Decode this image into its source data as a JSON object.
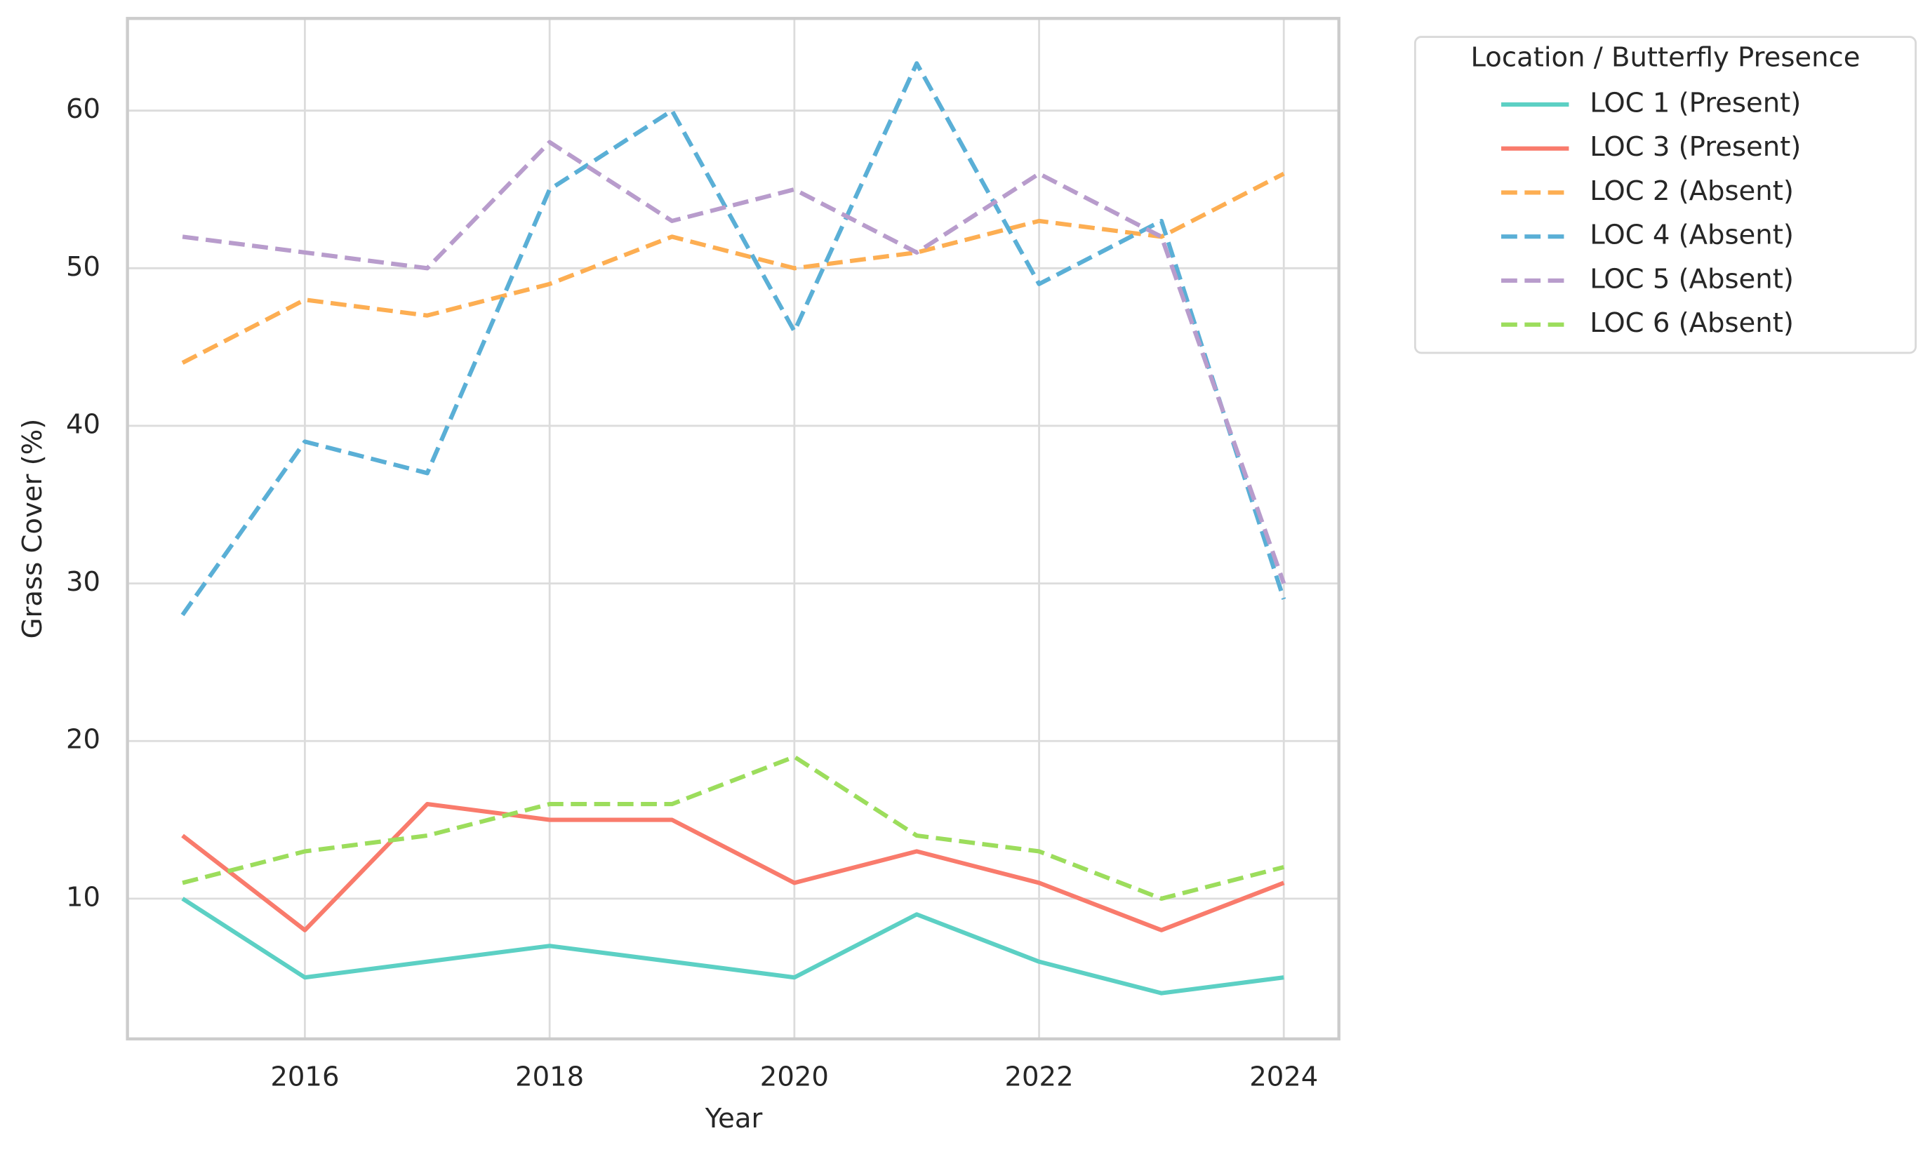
{
  "chart_data": {
    "type": "line",
    "x_label": "Year",
    "y_label": "Grass Cover (%)",
    "x": [
      2015,
      2016,
      2017,
      2018,
      2019,
      2020,
      2021,
      2022,
      2023,
      2024
    ],
    "xlim": [
      2014.55,
      2024.45
    ],
    "xticks": [
      2016,
      2018,
      2020,
      2022,
      2024
    ],
    "ylim": [
      1.1,
      65.85
    ],
    "yticks": [
      10,
      20,
      30,
      40,
      50,
      60
    ],
    "grid": true,
    "legend": "right",
    "legend_title": "Location / Butterfly Presence",
    "series": [
      {
        "name": "LOC 1 (Present)",
        "color": "#5cd0c4",
        "linestyle": "solid",
        "values": [
          10,
          5,
          6,
          7,
          6,
          5,
          9,
          6,
          4,
          5
        ]
      },
      {
        "name": "LOC 3 (Present)",
        "color": "#f97b6c",
        "linestyle": "solid",
        "values": [
          14,
          8,
          16,
          15,
          15,
          11,
          13,
          11,
          8,
          11
        ]
      },
      {
        "name": "LOC 2 (Absent)",
        "color": "#fdae52",
        "linestyle": "dashed",
        "values": [
          44,
          48,
          47,
          49,
          52,
          50,
          51,
          53,
          52,
          56
        ]
      },
      {
        "name": "LOC 4 (Absent)",
        "color": "#5aafd6",
        "linestyle": "dashed",
        "values": [
          28,
          39,
          37,
          55,
          60,
          46,
          63,
          49,
          53,
          29
        ]
      },
      {
        "name": "LOC 5 (Absent)",
        "color": "#b89ccc",
        "linestyle": "dashed",
        "values": [
          52,
          51,
          50,
          58,
          53,
          55,
          51,
          56,
          52,
          30
        ]
      },
      {
        "name": "LOC 6 (Absent)",
        "color": "#9cdd5c",
        "linestyle": "dashed",
        "values": [
          11,
          13,
          14,
          16,
          16,
          19,
          14,
          13,
          10,
          12
        ]
      }
    ]
  }
}
